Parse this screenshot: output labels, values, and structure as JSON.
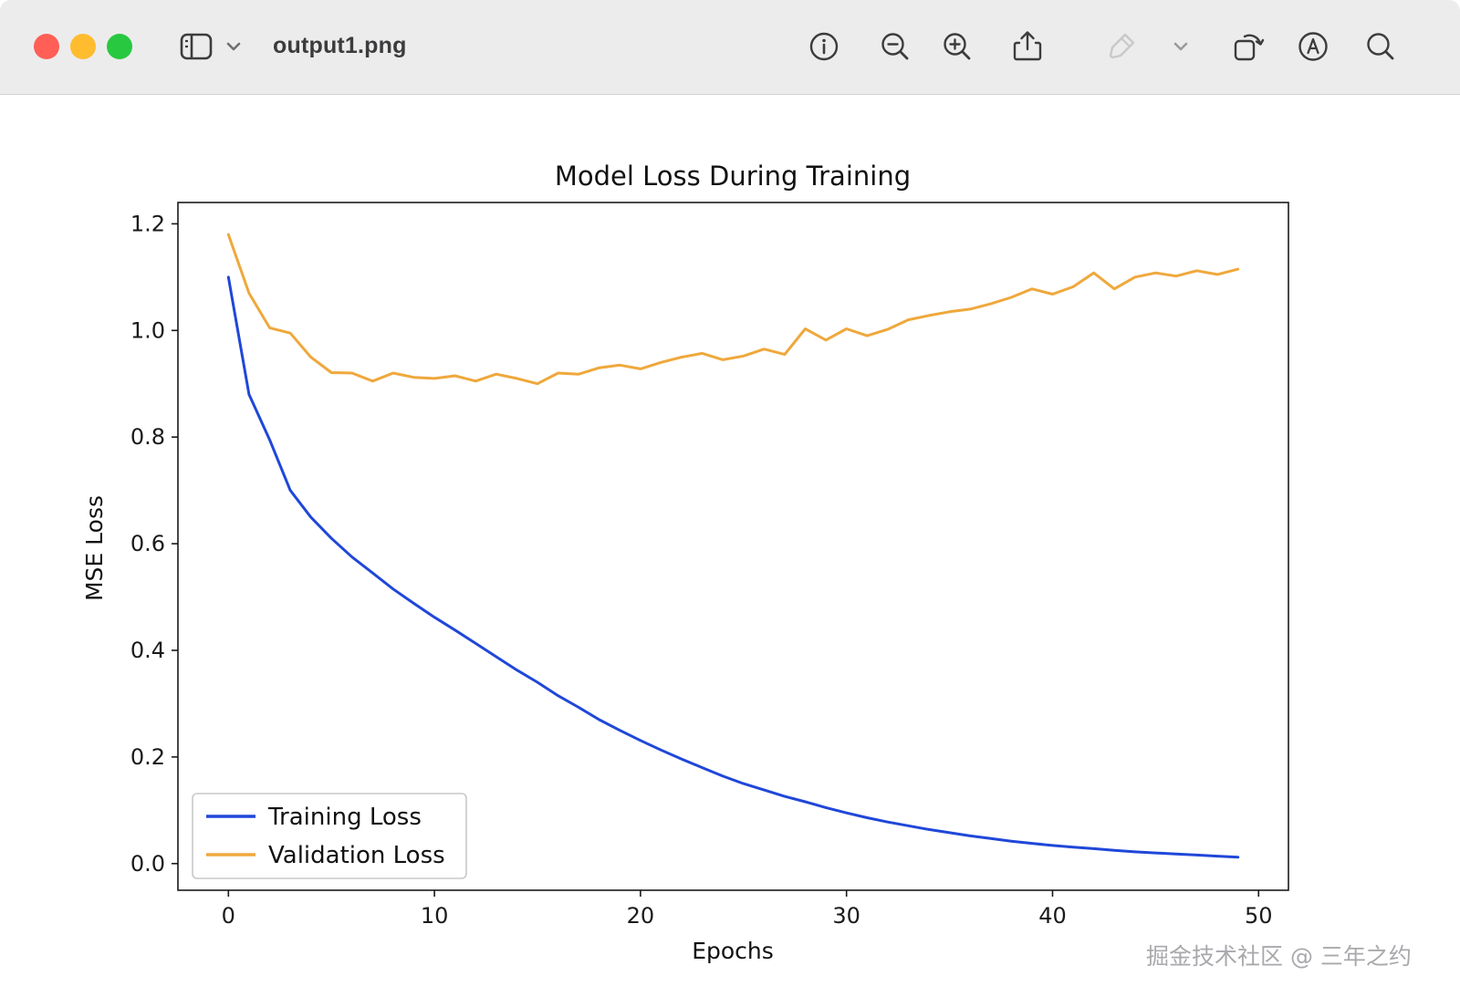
{
  "window": {
    "title": "output1.png",
    "traffic_light_colors": {
      "red": "#ff5f57",
      "yellow": "#febc2e",
      "green": "#28c840"
    }
  },
  "toolbar": {
    "icons": [
      "sidebar-toggle",
      "sidebar-chevron",
      "info",
      "zoom-out",
      "zoom-in",
      "share",
      "markup-pencil-disabled",
      "pencil-menu-chevron",
      "rotate-left",
      "annotate",
      "search"
    ]
  },
  "watermark": "掘金技术社区 @ 三年之约",
  "chart_data": {
    "type": "line",
    "title": "Model Loss During Training",
    "xlabel": "Epochs",
    "ylabel": "MSE Loss",
    "xlim": [
      -2.45,
      51.45
    ],
    "ylim": [
      -0.05,
      1.24
    ],
    "xticks": [
      0,
      10,
      20,
      30,
      40,
      50
    ],
    "yticks": [
      0.0,
      0.2,
      0.4,
      0.6,
      0.8,
      1.0,
      1.2
    ],
    "grid": false,
    "legend_position": "lower left",
    "x": [
      0,
      1,
      2,
      3,
      4,
      5,
      6,
      7,
      8,
      9,
      10,
      11,
      12,
      13,
      14,
      15,
      16,
      17,
      18,
      19,
      20,
      21,
      22,
      23,
      24,
      25,
      26,
      27,
      28,
      29,
      30,
      31,
      32,
      33,
      34,
      35,
      36,
      37,
      38,
      39,
      40,
      41,
      42,
      43,
      44,
      45,
      46,
      47,
      48,
      49
    ],
    "series": [
      {
        "name": "Training Loss",
        "color": "#2047d9",
        "values": [
          1.1,
          0.88,
          0.795,
          0.7,
          0.65,
          0.61,
          0.575,
          0.545,
          0.515,
          0.488,
          0.462,
          0.438,
          0.413,
          0.388,
          0.363,
          0.34,
          0.315,
          0.293,
          0.27,
          0.25,
          0.231,
          0.213,
          0.196,
          0.18,
          0.164,
          0.15,
          0.138,
          0.126,
          0.116,
          0.105,
          0.095,
          0.086,
          0.078,
          0.071,
          0.064,
          0.058,
          0.052,
          0.047,
          0.042,
          0.038,
          0.034,
          0.031,
          0.028,
          0.025,
          0.022,
          0.02,
          0.018,
          0.016,
          0.014,
          0.012
        ]
      },
      {
        "name": "Validation Loss",
        "color": "#efa83c",
        "values": [
          1.18,
          1.07,
          1.005,
          0.995,
          0.95,
          0.921,
          0.92,
          0.905,
          0.92,
          0.912,
          0.91,
          0.915,
          0.905,
          0.918,
          0.91,
          0.9,
          0.92,
          0.918,
          0.93,
          0.935,
          0.928,
          0.94,
          0.95,
          0.957,
          0.945,
          0.952,
          0.965,
          0.955,
          1.003,
          0.982,
          1.003,
          0.99,
          1.002,
          1.02,
          1.028,
          1.035,
          1.04,
          1.05,
          1.062,
          1.078,
          1.068,
          1.082,
          1.108,
          1.078,
          1.1,
          1.108,
          1.102,
          1.112,
          1.105,
          1.115
        ]
      }
    ]
  }
}
